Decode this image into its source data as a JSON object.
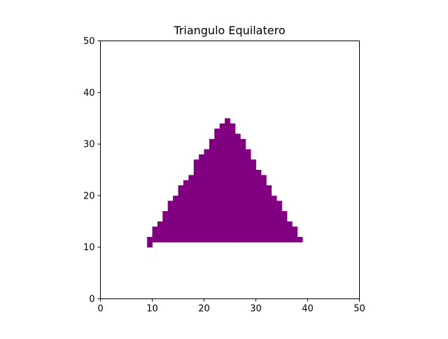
{
  "chart_data": {
    "type": "heatmap",
    "title": "Triangulo Equilatero",
    "xlabel": "",
    "ylabel": "",
    "xlim": [
      0,
      50
    ],
    "ylim": [
      0,
      50
    ],
    "xticks": [
      "0",
      "10",
      "20",
      "30",
      "40",
      "50"
    ],
    "yticks": [
      "0",
      "10",
      "20",
      "30",
      "40",
      "50"
    ],
    "grid": false,
    "fill_color": "#800080",
    "filled_cells_by_row": [
      {
        "y": 10,
        "x_ranges": [
          [
            9,
            9
          ]
        ]
      },
      {
        "y": 11,
        "x_ranges": [
          [
            9,
            38
          ]
        ]
      },
      {
        "y": 12,
        "x_ranges": [
          [
            10,
            37
          ]
        ]
      },
      {
        "y": 13,
        "x_ranges": [
          [
            10,
            37
          ]
        ]
      },
      {
        "y": 14,
        "x_ranges": [
          [
            11,
            36
          ]
        ]
      },
      {
        "y": 15,
        "x_ranges": [
          [
            12,
            35
          ]
        ]
      },
      {
        "y": 16,
        "x_ranges": [
          [
            12,
            35
          ]
        ]
      },
      {
        "y": 17,
        "x_ranges": [
          [
            13,
            34
          ]
        ]
      },
      {
        "y": 18,
        "x_ranges": [
          [
            13,
            34
          ]
        ]
      },
      {
        "y": 19,
        "x_ranges": [
          [
            14,
            33
          ]
        ]
      },
      {
        "y": 20,
        "x_ranges": [
          [
            15,
            32
          ]
        ]
      },
      {
        "y": 21,
        "x_ranges": [
          [
            15,
            32
          ]
        ]
      },
      {
        "y": 22,
        "x_ranges": [
          [
            16,
            31
          ]
        ]
      },
      {
        "y": 23,
        "x_ranges": [
          [
            17,
            31
          ]
        ]
      },
      {
        "y": 24,
        "x_ranges": [
          [
            18,
            30
          ]
        ]
      },
      {
        "y": 25,
        "x_ranges": [
          [
            18,
            29
          ]
        ]
      },
      {
        "y": 26,
        "x_ranges": [
          [
            18,
            29
          ]
        ]
      },
      {
        "y": 27,
        "x_ranges": [
          [
            19,
            28
          ]
        ]
      },
      {
        "y": 28,
        "x_ranges": [
          [
            20,
            28
          ]
        ]
      },
      {
        "y": 29,
        "x_ranges": [
          [
            21,
            27
          ]
        ]
      },
      {
        "y": 30,
        "x_ranges": [
          [
            21,
            27
          ]
        ]
      },
      {
        "y": 31,
        "x_ranges": [
          [
            22,
            26
          ]
        ]
      },
      {
        "y": 32,
        "x_ranges": [
          [
            22,
            25
          ]
        ]
      },
      {
        "y": 33,
        "x_ranges": [
          [
            23,
            25
          ]
        ]
      },
      {
        "y": 34,
        "x_ranges": [
          [
            24,
            24
          ]
        ]
      }
    ]
  }
}
